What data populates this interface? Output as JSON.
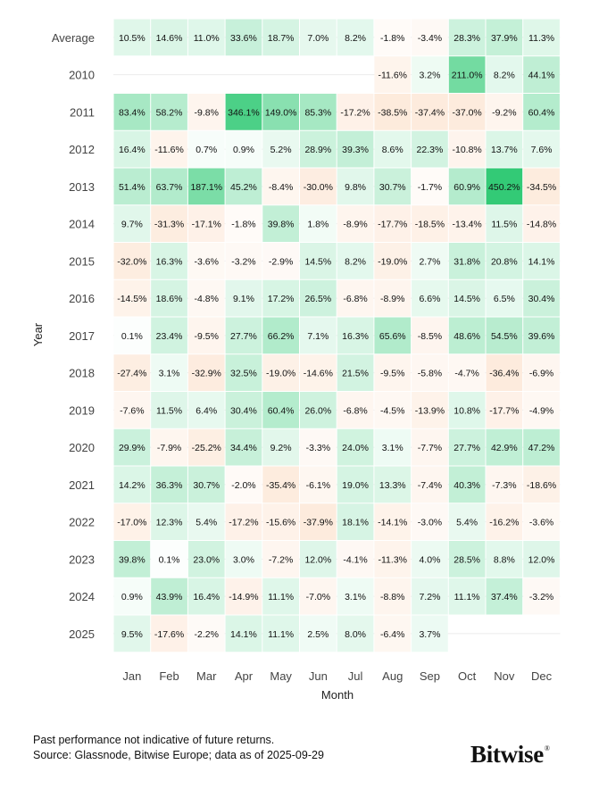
{
  "chart_data": {
    "type": "heatmap",
    "xlabel": "Month",
    "ylabel": "Year",
    "columns": [
      "Jan",
      "Feb",
      "Mar",
      "Apr",
      "May",
      "Jun",
      "Jul",
      "Aug",
      "Sep",
      "Oct",
      "Nov",
      "Dec"
    ],
    "rows": [
      "Average",
      "2010",
      "2011",
      "2012",
      "2013",
      "2014",
      "2015",
      "2016",
      "2017",
      "2018",
      "2019",
      "2020",
      "2021",
      "2022",
      "2023",
      "2024",
      "2025"
    ],
    "values": [
      [
        10.5,
        14.6,
        11.0,
        33.6,
        18.7,
        7.0,
        8.2,
        -1.8,
        -3.4,
        28.3,
        37.9,
        11.3
      ],
      [
        null,
        null,
        null,
        null,
        null,
        null,
        null,
        -11.6,
        3.2,
        211.0,
        8.2,
        44.1
      ],
      [
        83.4,
        58.2,
        -9.8,
        346.1,
        149.0,
        85.3,
        -17.2,
        -38.5,
        -37.4,
        -37.0,
        -9.2,
        60.4
      ],
      [
        16.4,
        -11.6,
        0.7,
        0.9,
        5.2,
        28.9,
        39.3,
        8.6,
        22.3,
        -10.8,
        13.7,
        7.6
      ],
      [
        51.4,
        63.7,
        187.1,
        45.2,
        -8.4,
        -30.0,
        9.8,
        30.7,
        -1.7,
        60.9,
        450.2,
        -34.5
      ],
      [
        9.7,
        -31.3,
        -17.1,
        -1.8,
        39.8,
        1.8,
        -8.9,
        -17.7,
        -18.5,
        -13.4,
        11.5,
        -14.8
      ],
      [
        -32.0,
        16.3,
        -3.6,
        -3.2,
        -2.9,
        14.5,
        8.2,
        -19.0,
        2.7,
        31.8,
        20.8,
        14.1
      ],
      [
        -14.5,
        18.6,
        -4.8,
        9.1,
        17.2,
        26.5,
        -6.8,
        -8.9,
        6.6,
        14.5,
        6.5,
        30.4
      ],
      [
        0.1,
        23.4,
        -9.5,
        27.7,
        66.2,
        7.1,
        16.3,
        65.6,
        -8.5,
        48.6,
        54.5,
        39.6
      ],
      [
        -27.4,
        3.1,
        -32.9,
        32.5,
        -19.0,
        -14.6,
        21.5,
        -9.5,
        -5.8,
        -4.7,
        -36.4,
        -6.9
      ],
      [
        -7.6,
        11.5,
        6.4,
        30.4,
        60.4,
        26.0,
        -6.8,
        -4.5,
        -13.9,
        10.8,
        -17.7,
        -4.9
      ],
      [
        29.9,
        -7.9,
        -25.2,
        34.4,
        9.2,
        -3.3,
        24.0,
        3.1,
        -7.7,
        27.7,
        42.9,
        47.2
      ],
      [
        14.2,
        36.3,
        30.7,
        -2.0,
        -35.4,
        -6.1,
        19.0,
        13.3,
        -7.4,
        40.3,
        -7.3,
        -18.6
      ],
      [
        -17.0,
        12.3,
        5.4,
        -17.2,
        -15.6,
        -37.9,
        18.1,
        -14.1,
        -3.0,
        5.4,
        -16.2,
        -3.6
      ],
      [
        39.8,
        0.1,
        23.0,
        3.0,
        -7.2,
        12.0,
        -4.1,
        -11.3,
        4.0,
        28.5,
        8.8,
        12.0
      ],
      [
        0.9,
        43.9,
        16.4,
        -14.9,
        11.1,
        -7.0,
        3.1,
        -8.8,
        7.2,
        11.1,
        37.4,
        -3.2
      ],
      [
        9.5,
        -17.6,
        -2.2,
        14.1,
        11.1,
        2.5,
        8.0,
        -6.4,
        3.7,
        null,
        null,
        null
      ]
    ],
    "value_format": "percent, one decimal",
    "colors": {
      "positive": "#28c76f",
      "negative": "#f5a15f",
      "text": "#111111",
      "grid": "#ececec"
    },
    "grid": true
  },
  "footnote": {
    "line1": "Past performance not indicative of future returns.",
    "line2": "Source: Glassnode, Bitwise Europe; data as of 2025-09-29"
  },
  "brand": {
    "logo_text": "Bitwise",
    "registered": "®"
  }
}
